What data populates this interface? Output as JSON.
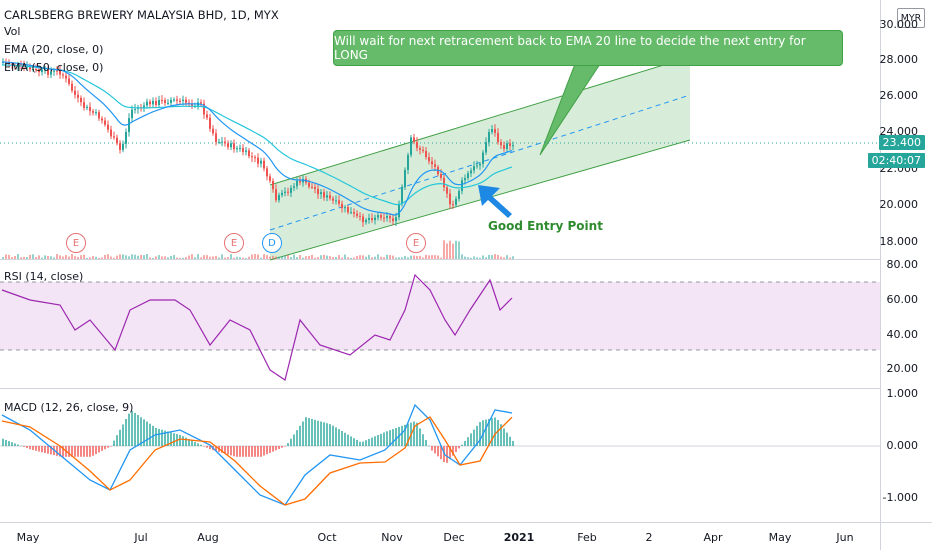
{
  "header": {
    "title": "CARLSBERG BREWERY MALAYSIA BHD, 1D, MYX",
    "currency": "MYR"
  },
  "indicators": {
    "vol": "Vol",
    "ema20": "EMA (20, close, 0)",
    "ema50": "EMA (50, close, 0)",
    "rsi": "RSI (14, close)",
    "macd": "MACD (12, 26, close, 9)"
  },
  "annotations": {
    "callout": "Will wait for next retracement back to EMA 20 line  to decide the next entry for LONG",
    "entry": "Good Entry Point"
  },
  "events": [
    {
      "label": "E",
      "type": "earnings"
    },
    {
      "label": "E",
      "type": "earnings"
    },
    {
      "label": "D",
      "type": "dividend"
    },
    {
      "label": "E",
      "type": "earnings"
    }
  ],
  "price_axis": {
    "ticks": [
      "30.000",
      "28.000",
      "26.000",
      "24.000",
      "22.000",
      "20.000",
      "18.000"
    ],
    "last_price": "23.400",
    "countdown": "02:40:07"
  },
  "rsi_axis": {
    "ticks": [
      "80.00",
      "60.00",
      "40.00",
      "20.00"
    ]
  },
  "macd_axis": {
    "ticks": [
      "1.000",
      "0.000",
      "-1.000"
    ]
  },
  "time_axis": {
    "labels": [
      "May",
      "Jul",
      "Aug",
      "Oct",
      "Nov",
      "Dec",
      "2021",
      "Feb",
      "2",
      "Apr",
      "May",
      "Jun"
    ]
  },
  "colors": {
    "up": "#26a69a",
    "down": "#ef5350",
    "ema20": "#2196f3",
    "ema50": "#26c6da",
    "rsi": "#9c27b0",
    "macd": "#2196f3",
    "signal": "#ff6d00",
    "channel_fill": "#c8e6c9",
    "channel_line": "#43a047",
    "accent": "#66bb6a"
  }
}
